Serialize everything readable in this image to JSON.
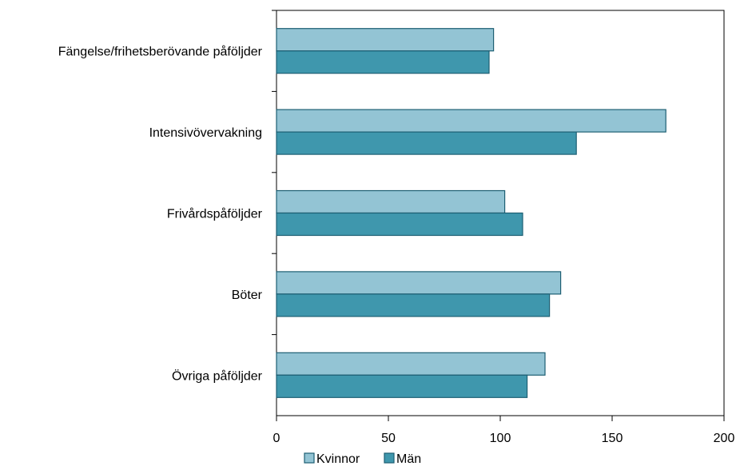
{
  "chart_data": {
    "type": "bar",
    "orientation": "horizontal",
    "categories": [
      "Fängelse/frihetsberövande påföljder",
      "Intensivövervakning",
      "Frivårdspåföljder",
      "Böter",
      "Övriga påföljder"
    ],
    "series": [
      {
        "name": "Kvinnor",
        "color": "#93c4d4",
        "values": [
          97,
          174,
          102,
          127,
          120
        ]
      },
      {
        "name": "Män",
        "color": "#3f97ad",
        "values": [
          95,
          134,
          110,
          122,
          112
        ]
      }
    ],
    "xlim": [
      0,
      200
    ],
    "xticks": [
      "0",
      "50",
      "100",
      "150",
      "200"
    ],
    "title": "",
    "xlabel": "",
    "ylabel": "",
    "grid": false,
    "legend_position": "bottom",
    "bar_stroke_color": "#1d5f73"
  }
}
